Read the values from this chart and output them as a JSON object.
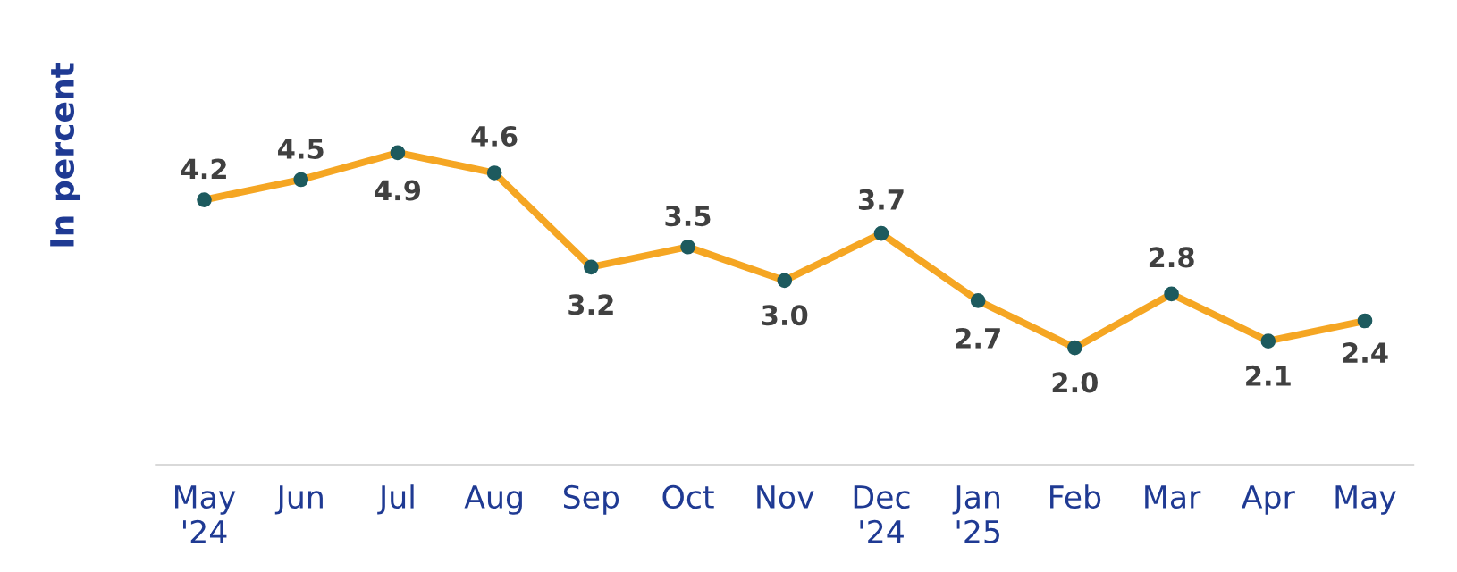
{
  "chart_data": {
    "type": "line",
    "ylabel": "In percent",
    "categories": [
      "May\n'24",
      "Jun",
      "Jul",
      "Aug",
      "Sep",
      "Oct",
      "Nov",
      "Dec\n'24",
      "Jan\n'25",
      "Feb",
      "Mar",
      "Apr",
      "May"
    ],
    "series": [
      {
        "color": "#f5a623",
        "values": [
          4.2,
          4.5,
          4.9,
          4.6,
          3.2,
          3.5,
          3.0,
          3.7,
          2.7,
          2.0,
          2.8,
          2.1,
          2.4
        ],
        "value_labels": [
          "4.2",
          "4.5",
          "4.9",
          "4.6",
          "3.2",
          "3.5",
          "3.0",
          "3.7",
          "2.7",
          "2.0",
          "2.8",
          "2.1",
          "2.4"
        ]
      }
    ],
    "tick_labels": "x",
    "marker": "circle",
    "line_style": "solid",
    "grid": false,
    "legend": false
  }
}
